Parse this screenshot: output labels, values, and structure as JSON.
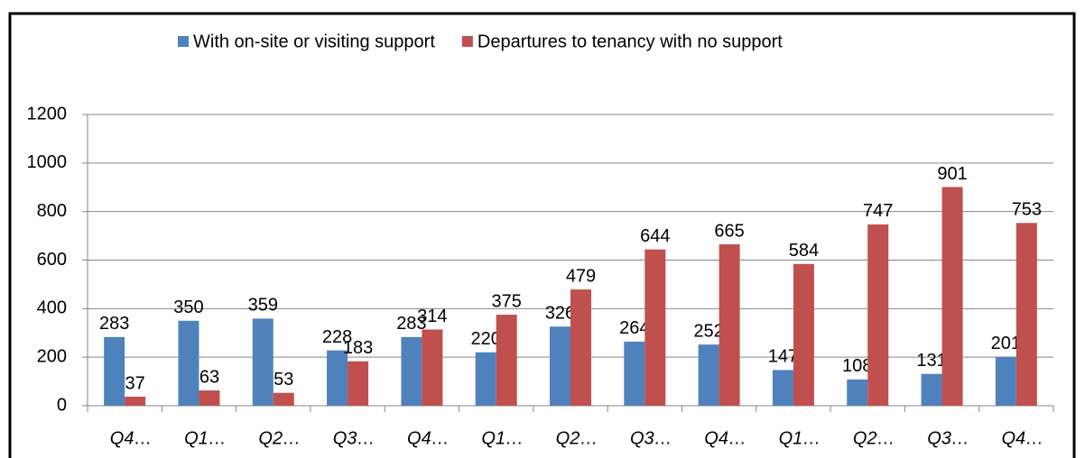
{
  "chart_data": {
    "type": "bar",
    "categories": [
      "Q4…",
      "Q1…",
      "Q2…",
      "Q3…",
      "Q4…",
      "Q1…",
      "Q2…",
      "Q3…",
      "Q4…",
      "Q1…",
      "Q2…",
      "Q3…",
      "Q4…"
    ],
    "series": [
      {
        "name": "With on-site or visiting support",
        "color": "#4f81bd",
        "values": [
          283,
          350,
          359,
          228,
          283,
          220,
          326,
          264,
          252,
          147,
          108,
          131,
          201
        ]
      },
      {
        "name": "Departures to tenancy with no support",
        "color": "#c0504d",
        "values": [
          37,
          63,
          53,
          183,
          314,
          375,
          479,
          644,
          665,
          584,
          747,
          901,
          753
        ]
      }
    ],
    "ylim": [
      0,
      1200
    ],
    "yticks": [
      0,
      200,
      400,
      600,
      800,
      1000,
      1200
    ],
    "grid": true
  }
}
